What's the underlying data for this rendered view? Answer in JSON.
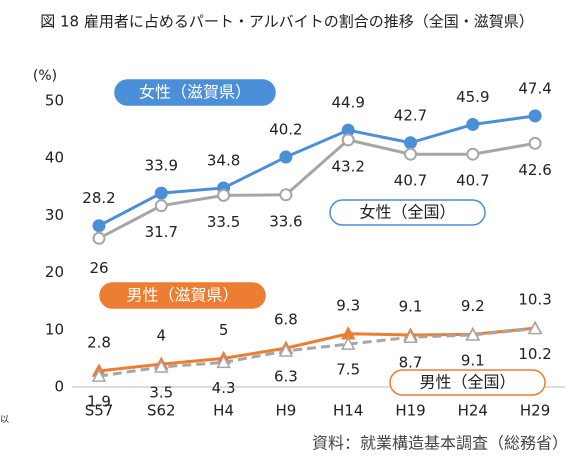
{
  "chart_data": {
    "type": "line",
    "title": "図 18 雇用者に占めるパート・アルバイトの割合の推移（全国・滋賀県）",
    "y_unit": "(%)",
    "source": "資料：就業構造基本調査（総務省）",
    "edge_text": "以",
    "categories": [
      "S57",
      "S62",
      "H4",
      "H9",
      "H14",
      "H19",
      "H24",
      "H29"
    ],
    "series": [
      {
        "name": "女性（滋賀県）",
        "color": "#4a8fd8",
        "values": [
          28.2,
          33.9,
          34.8,
          40.2,
          44.9,
          42.7,
          45.9,
          47.4
        ]
      },
      {
        "name": "女性（全国）",
        "color": "#a6a6a6",
        "values": [
          26.0,
          31.7,
          33.5,
          33.6,
          43.2,
          40.7,
          40.7,
          42.6
        ]
      },
      {
        "name": "男性（滋賀県）",
        "color": "#ed7d31",
        "values": [
          2.8,
          4.0,
          5.0,
          6.8,
          9.3,
          9.1,
          9.2,
          10.3
        ]
      },
      {
        "name": "男性（全国）",
        "color": "#a6a6a6",
        "values": [
          1.9,
          3.5,
          4.3,
          6.3,
          7.5,
          8.7,
          9.1,
          10.2
        ]
      }
    ],
    "ylim": [
      0,
      50
    ],
    "yticks": [
      0,
      10,
      20,
      30,
      40,
      50
    ]
  }
}
